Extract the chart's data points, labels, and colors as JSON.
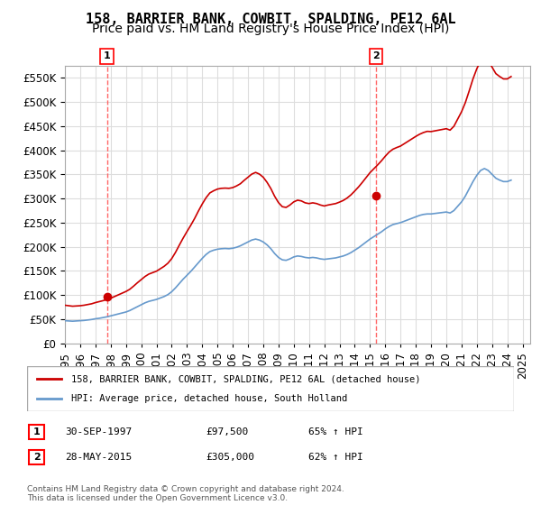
{
  "title": "158, BARRIER BANK, COWBIT, SPALDING, PE12 6AL",
  "subtitle": "Price paid vs. HM Land Registry's House Price Index (HPI)",
  "ylabel": "",
  "ylim": [
    0,
    575000
  ],
  "yticks": [
    0,
    50000,
    100000,
    150000,
    200000,
    250000,
    300000,
    350000,
    400000,
    450000,
    500000,
    550000
  ],
  "xlim_start": 1995.0,
  "xlim_end": 2025.5,
  "transaction1_date": 1997.75,
  "transaction1_price": 97500,
  "transaction1_label": "1",
  "transaction2_date": 2015.4,
  "transaction2_price": 305000,
  "transaction2_label": "2",
  "red_line_color": "#cc0000",
  "blue_line_color": "#6699cc",
  "marker_color": "#cc0000",
  "vline_color": "#ff6666",
  "grid_color": "#dddddd",
  "background_color": "#ffffff",
  "legend_line1": "158, BARRIER BANK, COWBIT, SPALDING, PE12 6AL (detached house)",
  "legend_line2": "HPI: Average price, detached house, South Holland",
  "table_row1": [
    "1",
    "30-SEP-1997",
    "£97,500",
    "65% ↑ HPI"
  ],
  "table_row2": [
    "2",
    "28-MAY-2015",
    "£305,000",
    "62% ↑ HPI"
  ],
  "footer": "Contains HM Land Registry data © Crown copyright and database right 2024.\nThis data is licensed under the Open Government Licence v3.0.",
  "title_fontsize": 11,
  "subtitle_fontsize": 10,
  "tick_fontsize": 8.5,
  "hpi_data": {
    "years": [
      1995.0,
      1995.25,
      1995.5,
      1995.75,
      1996.0,
      1996.25,
      1996.5,
      1996.75,
      1997.0,
      1997.25,
      1997.5,
      1997.75,
      1998.0,
      1998.25,
      1998.5,
      1998.75,
      1999.0,
      1999.25,
      1999.5,
      1999.75,
      2000.0,
      2000.25,
      2000.5,
      2000.75,
      2001.0,
      2001.25,
      2001.5,
      2001.75,
      2002.0,
      2002.25,
      2002.5,
      2002.75,
      2003.0,
      2003.25,
      2003.5,
      2003.75,
      2004.0,
      2004.25,
      2004.5,
      2004.75,
      2005.0,
      2005.25,
      2005.5,
      2005.75,
      2006.0,
      2006.25,
      2006.5,
      2006.75,
      2007.0,
      2007.25,
      2007.5,
      2007.75,
      2008.0,
      2008.25,
      2008.5,
      2008.75,
      2009.0,
      2009.25,
      2009.5,
      2009.75,
      2010.0,
      2010.25,
      2010.5,
      2010.75,
      2011.0,
      2011.25,
      2011.5,
      2011.75,
      2012.0,
      2012.25,
      2012.5,
      2012.75,
      2013.0,
      2013.25,
      2013.5,
      2013.75,
      2014.0,
      2014.25,
      2014.5,
      2014.75,
      2015.0,
      2015.25,
      2015.5,
      2015.75,
      2016.0,
      2016.25,
      2016.5,
      2016.75,
      2017.0,
      2017.25,
      2017.5,
      2017.75,
      2018.0,
      2018.25,
      2018.5,
      2018.75,
      2019.0,
      2019.25,
      2019.5,
      2019.75,
      2020.0,
      2020.25,
      2020.5,
      2020.75,
      2021.0,
      2021.25,
      2021.5,
      2021.75,
      2022.0,
      2022.25,
      2022.5,
      2022.75,
      2023.0,
      2023.25,
      2023.5,
      2023.75,
      2024.0,
      2024.25
    ],
    "values": [
      47000,
      46500,
      46000,
      46500,
      47000,
      47500,
      48500,
      49500,
      51000,
      52000,
      53500,
      55000,
      57000,
      59000,
      61000,
      63000,
      65000,
      68000,
      72000,
      76000,
      80000,
      84000,
      87000,
      89000,
      91000,
      94000,
      97000,
      101000,
      107000,
      115000,
      124000,
      133000,
      141000,
      149000,
      158000,
      167000,
      176000,
      184000,
      190000,
      193000,
      195000,
      196000,
      196500,
      196000,
      197000,
      199000,
      202000,
      206000,
      210000,
      214000,
      216000,
      214000,
      210000,
      204000,
      196000,
      186000,
      178000,
      173000,
      172000,
      175000,
      179000,
      181000,
      180000,
      178000,
      177000,
      178000,
      177000,
      175000,
      174000,
      175000,
      176000,
      177000,
      179000,
      181000,
      184000,
      188000,
      193000,
      198000,
      204000,
      210000,
      216000,
      221000,
      226000,
      231000,
      237000,
      242000,
      246000,
      248000,
      250000,
      253000,
      256000,
      259000,
      262000,
      265000,
      267000,
      268000,
      268000,
      269000,
      270000,
      271000,
      272000,
      270000,
      275000,
      284000,
      293000,
      305000,
      320000,
      335000,
      348000,
      358000,
      362000,
      358000,
      350000,
      342000,
      338000,
      335000,
      335000,
      338000
    ]
  },
  "property_data": {
    "years": [
      1995.0,
      1995.25,
      1995.5,
      1995.75,
      1996.0,
      1996.25,
      1996.5,
      1996.75,
      1997.0,
      1997.25,
      1997.5,
      1997.75,
      1998.0,
      1998.25,
      1998.5,
      1998.75,
      1999.0,
      1999.25,
      1999.5,
      1999.75,
      2000.0,
      2000.25,
      2000.5,
      2000.75,
      2001.0,
      2001.25,
      2001.5,
      2001.75,
      2002.0,
      2002.25,
      2002.5,
      2002.75,
      2003.0,
      2003.25,
      2003.5,
      2003.75,
      2004.0,
      2004.25,
      2004.5,
      2004.75,
      2005.0,
      2005.25,
      2005.5,
      2005.75,
      2006.0,
      2006.25,
      2006.5,
      2006.75,
      2007.0,
      2007.25,
      2007.5,
      2007.75,
      2008.0,
      2008.25,
      2008.5,
      2008.75,
      2009.0,
      2009.25,
      2009.5,
      2009.75,
      2010.0,
      2010.25,
      2010.5,
      2010.75,
      2011.0,
      2011.25,
      2011.5,
      2011.75,
      2012.0,
      2012.25,
      2012.5,
      2012.75,
      2013.0,
      2013.25,
      2013.5,
      2013.75,
      2014.0,
      2014.25,
      2014.5,
      2014.75,
      2015.0,
      2015.25,
      2015.5,
      2015.75,
      2016.0,
      2016.25,
      2016.5,
      2016.75,
      2017.0,
      2017.25,
      2017.5,
      2017.75,
      2018.0,
      2018.25,
      2018.5,
      2018.75,
      2019.0,
      2019.25,
      2019.5,
      2019.75,
      2020.0,
      2020.25,
      2020.5,
      2020.75,
      2021.0,
      2021.25,
      2021.5,
      2021.75,
      2022.0,
      2022.25,
      2022.5,
      2022.75,
      2023.0,
      2023.25,
      2023.5,
      2023.75,
      2024.0,
      2024.25
    ],
    "values": [
      79000,
      78000,
      77000,
      77500,
      78000,
      79000,
      80500,
      82000,
      84500,
      86500,
      88500,
      91000,
      93500,
      97000,
      100500,
      104000,
      107500,
      112000,
      118500,
      125500,
      132000,
      138500,
      143500,
      146500,
      149500,
      154500,
      159500,
      166000,
      175500,
      188500,
      203500,
      218000,
      231500,
      244500,
      258500,
      274000,
      288500,
      301500,
      311500,
      316000,
      319500,
      321000,
      321500,
      321000,
      322500,
      326000,
      330500,
      337500,
      344000,
      350500,
      354000,
      350500,
      344000,
      333500,
      320500,
      304500,
      291500,
      283000,
      281500,
      286500,
      293000,
      296500,
      295000,
      291000,
      289500,
      291000,
      289500,
      286500,
      284500,
      286500,
      288000,
      289500,
      292500,
      296000,
      301000,
      307500,
      315500,
      324000,
      333500,
      343500,
      353500,
      361500,
      369500,
      378000,
      387500,
      396000,
      402000,
      405500,
      408500,
      413500,
      418500,
      423500,
      428500,
      433000,
      436500,
      439000,
      438500,
      440000,
      441500,
      443000,
      444500,
      441500,
      449500,
      464500,
      479500,
      498500,
      522500,
      547500,
      568500,
      585000,
      591500,
      585500,
      572000,
      558500,
      552500,
      547500,
      547500,
      552500
    ]
  }
}
